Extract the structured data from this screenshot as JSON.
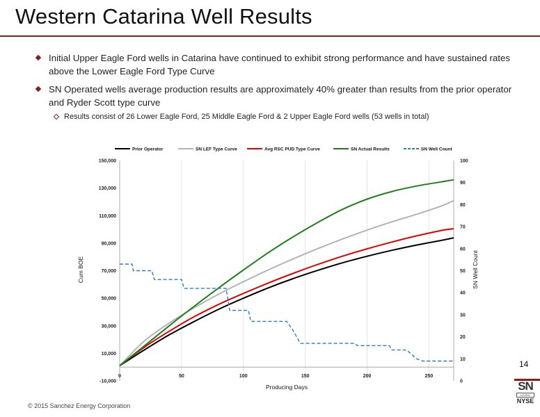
{
  "page": {
    "title": "Western Catarina Well Results",
    "bullets": [
      "Initial Upper Eagle Ford wells in Catarina have continued to exhibit strong performance and have sustained rates above the Lower Eagle Ford Type Curve",
      "SN Operated wells average production results are approximately 40% greater than results from the prior operator and Ryder Scott type curve"
    ],
    "sub_bullet": "Results consist of 26 Lower Eagle Ford,  25 Middle Eagle Ford & 2 Upper Eagle Ford wells (53 wells in total)",
    "page_number": "14",
    "footer": "© 2015 Sanchez Energy Corporation",
    "logo": {
      "mark": "SN",
      "listed": "LISTED",
      "exchange": "NYSE"
    },
    "colors": {
      "accent": "#8a1c1c"
    }
  },
  "chart_data": {
    "type": "line",
    "xlabel": "Producing Days",
    "ylabel": "Cum BOE",
    "y2label": "SN Well Count",
    "xlim": [
      0,
      270
    ],
    "ylim": [
      -10000,
      150000
    ],
    "y2lim": [
      0,
      100
    ],
    "x_ticks": [
      "0",
      "50",
      "100",
      "150",
      "200",
      "250"
    ],
    "y_ticks": [
      "-10,000",
      "10,000",
      "30,000",
      "50,000",
      "70,000",
      "90,000",
      "110,000",
      "130,000",
      "150,000"
    ],
    "y2_ticks": [
      "0",
      "10",
      "20",
      "30",
      "40",
      "50",
      "60",
      "70",
      "80",
      "90",
      "100"
    ],
    "grid": "vertical",
    "legend_position": "top",
    "x": [
      0,
      20,
      40,
      60,
      80,
      100,
      120,
      140,
      160,
      180,
      200,
      220,
      240,
      260,
      270
    ],
    "series": [
      {
        "name": "Prior Operator",
        "axis": "left",
        "color": "#000000",
        "style": "solid",
        "values": [
          1000,
          12500,
          23400,
          33000,
          42000,
          50000,
          57500,
          64200,
          70200,
          75700,
          80500,
          84800,
          88600,
          92000,
          93900
        ]
      },
      {
        "name": "SN LEF Type Curve",
        "axis": "left",
        "color": "#b3b3b3",
        "style": "solid",
        "values": [
          1000,
          19000,
          32000,
          43000,
          53000,
          62000,
          70500,
          78500,
          86000,
          93000,
          99500,
          105500,
          111000,
          117000,
          121000
        ]
      },
      {
        "name": "Avg RSC PUD Type Curve",
        "axis": "left",
        "color": "#e00000",
        "style": "solid",
        "values": [
          1000,
          14500,
          26000,
          36500,
          45500,
          53500,
          61000,
          68000,
          74500,
          80500,
          85900,
          90800,
          95300,
          99200,
          100500
        ]
      },
      {
        "name": "SN Actual Results",
        "axis": "left",
        "color": "#1e7d1e",
        "style": "solid",
        "values": [
          1000,
          15500,
          30000,
          44000,
          57500,
          70500,
          83000,
          94500,
          105000,
          114500,
          122000,
          127500,
          131500,
          134500,
          136000
        ]
      },
      {
        "name": "SN Well Count",
        "axis": "right",
        "color": "#2f78c4",
        "style": "dashed",
        "steps": [
          [
            0,
            53
          ],
          [
            10,
            53
          ],
          [
            11,
            50
          ],
          [
            26,
            50
          ],
          [
            28,
            46
          ],
          [
            50,
            46
          ],
          [
            52,
            42
          ],
          [
            86,
            42
          ],
          [
            89,
            32
          ],
          [
            104,
            32
          ],
          [
            106,
            27
          ],
          [
            135,
            27
          ],
          [
            140,
            23
          ],
          [
            146,
            17
          ],
          [
            190,
            17
          ],
          [
            192,
            16
          ],
          [
            218,
            16
          ],
          [
            220,
            14
          ],
          [
            232,
            14
          ],
          [
            240,
            10
          ],
          [
            245,
            9
          ],
          [
            270,
            9
          ]
        ]
      }
    ]
  }
}
